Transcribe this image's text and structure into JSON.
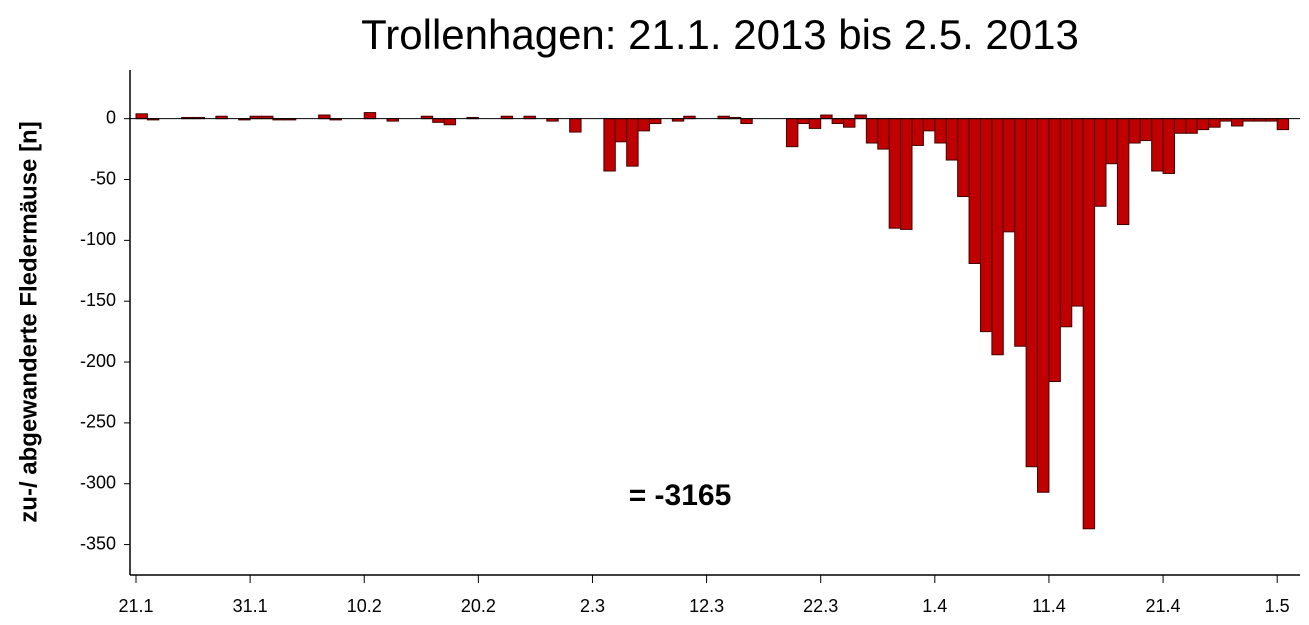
{
  "chart_data": {
    "type": "bar",
    "title": "Trollenhagen: 21.1. 2013 bis 2.5. 2013",
    "y_label": "zu-/ abgewanderte Fledermäuse [n]",
    "annotation": "= -3165",
    "color": "#c00000",
    "categories": [
      "21.1",
      null,
      null,
      null,
      null,
      null,
      null,
      null,
      null,
      null,
      "31.1",
      null,
      null,
      null,
      null,
      null,
      null,
      null,
      null,
      null,
      "10.2",
      null,
      null,
      null,
      null,
      null,
      null,
      null,
      null,
      null,
      "20.2",
      null,
      null,
      null,
      null,
      null,
      null,
      null,
      null,
      null,
      "2.3",
      null,
      null,
      null,
      null,
      null,
      null,
      null,
      null,
      null,
      "12.3",
      null,
      null,
      null,
      null,
      null,
      null,
      null,
      null,
      null,
      "22.3",
      null,
      null,
      null,
      null,
      null,
      null,
      null,
      null,
      null,
      "1.4",
      null,
      null,
      null,
      null,
      null,
      null,
      null,
      null,
      null,
      "11.4",
      null,
      null,
      null,
      null,
      null,
      null,
      null,
      null,
      null,
      "21.4",
      null,
      null,
      null,
      null,
      null,
      null,
      null,
      null,
      null,
      "1.5",
      null
    ],
    "values": [
      4,
      -1,
      0,
      0,
      1,
      1,
      0,
      2,
      0,
      -1,
      2,
      2,
      -1,
      -1,
      0,
      0,
      3,
      -1,
      0,
      0,
      5,
      0,
      -2,
      0,
      0,
      2,
      -3,
      -5,
      0,
      1,
      0,
      0,
      2,
      0,
      2,
      0,
      -2,
      0,
      -11,
      0,
      0,
      -43,
      -19,
      -39,
      -10,
      -4,
      0,
      -2,
      2,
      0,
      0,
      2,
      1,
      -4,
      0,
      0,
      0,
      -23,
      -4,
      -8,
      3,
      -4,
      -7,
      3,
      -20,
      -25,
      -90,
      -91,
      -22,
      -10,
      -20,
      -34,
      -64,
      -119,
      -175,
      -194,
      -93,
      -187,
      -286,
      -307,
      -216,
      -171,
      -154,
      -337,
      -72,
      -37,
      -87,
      -20,
      -18,
      -43,
      -45,
      -12,
      -12,
      -9,
      -7,
      -2,
      -6,
      -2,
      -2,
      -2,
      -9,
      0
    ],
    "ylim": [
      -375,
      40
    ],
    "yticks": [
      0,
      -50,
      -100,
      -150,
      -200,
      -250,
      -300,
      -350
    ]
  }
}
